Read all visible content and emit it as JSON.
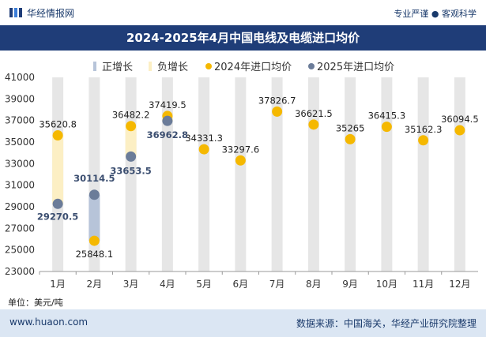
{
  "header": {
    "logo_text": "华经情报网",
    "tagline": "专业严谨 ● 客观科学"
  },
  "footer": {
    "unit": "单位：美元/吨",
    "site": "www.huaon.com",
    "source": "数据来源：中国海关，华经产业研究院整理"
  },
  "colors": {
    "header_bar": "#1f3d78",
    "increase": "#b7c4d9",
    "decrease": "#fcefc4",
    "avg_2024": "#f5b800",
    "avg_2025": "#6b7c99",
    "column_bg": "#e6e6e6"
  },
  "chart_data": {
    "type": "line",
    "title": "2024-2025年4月中国电线及电缆进口均价",
    "categories": [
      "1月",
      "2月",
      "3月",
      "4月",
      "5月",
      "6月",
      "7月",
      "8月",
      "9月",
      "10月",
      "11月",
      "12月"
    ],
    "series": [
      {
        "name": "2024年进口均价",
        "values": [
          35620.8,
          25848.1,
          36482.2,
          37419.5,
          34331.3,
          33297.6,
          37826.7,
          36621.5,
          35265,
          36415.3,
          35162.3,
          36094.5
        ]
      },
      {
        "name": "2025年进口均价",
        "values": [
          29270.5,
          30114.5,
          33653.5,
          36962.8,
          null,
          null,
          null,
          null,
          null,
          null,
          null,
          null
        ]
      }
    ],
    "legend": [
      "正增长",
      "负增长",
      "2024年进口均价",
      "2025年进口均价"
    ],
    "legend_position": "top",
    "y_ticks": [
      23000,
      25000,
      27000,
      29000,
      31000,
      33000,
      35000,
      37000,
      39000,
      41000
    ],
    "ylim": [
      23000,
      41000
    ],
    "labels_2024": [
      "35620.8",
      "25848.1",
      "36482.2",
      "37419.5",
      "34331.3",
      "33297.6",
      "37826.7",
      "36621.5",
      "35265",
      "36415.3",
      "35162.3",
      "36094.5"
    ],
    "labels_2025": [
      "29270.5",
      "30114.5",
      "33653.5",
      "36962.8"
    ]
  }
}
